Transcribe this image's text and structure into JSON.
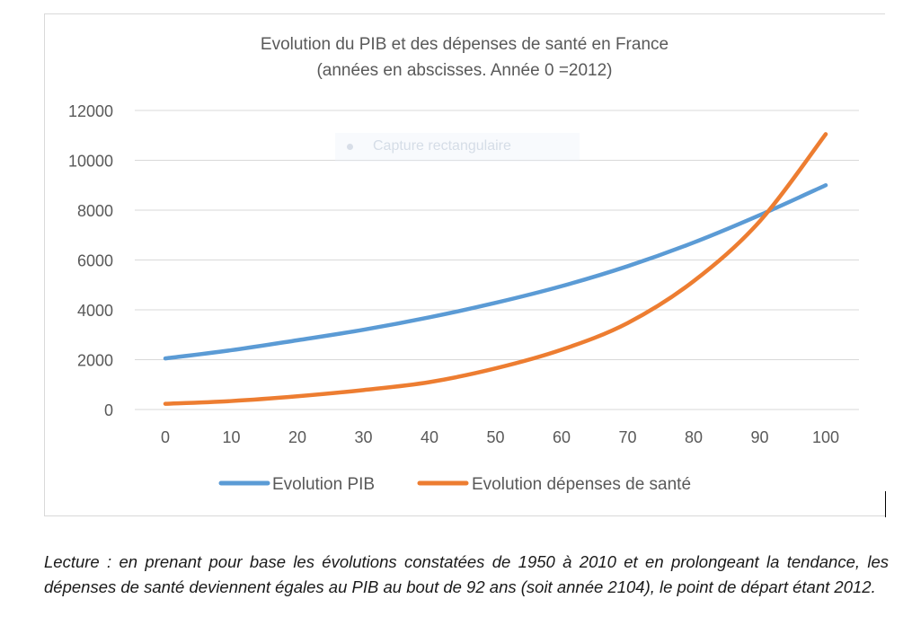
{
  "caption": "Lecture : en prenant pour base les évolutions constatées de 1950 à 2010 et en prolongeant la tendance, les dépenses de santé deviennent égales au PIB au bout de 92 ans (soit année 2104), le point de départ étant 2012.",
  "overlay": {
    "label": "Capture rectangulaire",
    "icon": "record-dot-icon"
  },
  "chart_data": {
    "type": "line",
    "title": "Evolution du PIB et des dépenses de santé en France",
    "subtitle": "(années en abscisses. Année 0 =2012)",
    "x": [
      0,
      10,
      20,
      30,
      40,
      50,
      60,
      70,
      80,
      90,
      100
    ],
    "x_tick_labels": [
      "0",
      "10",
      "20",
      "30",
      "40",
      "50",
      "60",
      "70",
      "80",
      "90",
      "100"
    ],
    "y_tick_labels": [
      "0",
      "2000",
      "4000",
      "6000",
      "8000",
      "10000",
      "12000"
    ],
    "ylim": [
      0,
      12000
    ],
    "grid": true,
    "legend_position": "bottom",
    "series": [
      {
        "name": "Evolution PIB",
        "color": "#5b9bd5",
        "values": [
          2050,
          2380,
          2780,
          3200,
          3700,
          4280,
          4950,
          5750,
          6700,
          7800,
          9000
        ]
      },
      {
        "name": "Evolution dépenses de santé",
        "color": "#ed7d31",
        "values": [
          230,
          340,
          530,
          780,
          1100,
          1650,
          2400,
          3470,
          5150,
          7550,
          11050
        ]
      }
    ]
  }
}
